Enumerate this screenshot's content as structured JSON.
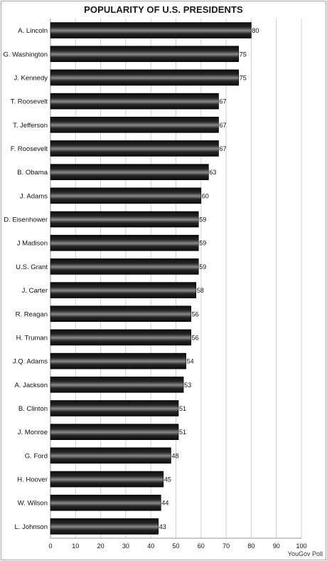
{
  "chart_data": {
    "type": "bar",
    "orientation": "horizontal",
    "title": "POPULARITY OF U.S. PRESIDENTS",
    "categories": [
      "A. Lincoln",
      "G. Washington",
      "J. Kennedy",
      "T. Roosevelt",
      "T. Jefferson",
      "F. Roosevelt",
      "B. Obama",
      "J. Adams",
      "D. Eisenhower",
      "J Madison",
      "U.S. Grant",
      "J. Carter",
      "R. Reagan",
      "H. Truman",
      "J.Q. Adams",
      "A. Jackson",
      "B. Clinton",
      "J. Monroe",
      "G. Ford",
      "H. Hoover",
      "W. Wilson",
      "L. Johnson"
    ],
    "values": [
      80,
      75,
      75,
      67,
      67,
      67,
      63,
      60,
      59,
      59,
      59,
      58,
      56,
      56,
      54,
      53,
      51,
      51,
      48,
      45,
      44,
      43
    ],
    "xlim": [
      0,
      100
    ],
    "xticks": [
      0,
      10,
      20,
      30,
      40,
      50,
      60,
      70,
      80,
      90,
      100
    ],
    "grid": "vertical",
    "data_labels": true,
    "bar_color": "#1c1c1c",
    "bar_highlight_color": "#8a8a8a",
    "grid_color": "#d0d0d0"
  },
  "source": "YouGov Poll"
}
